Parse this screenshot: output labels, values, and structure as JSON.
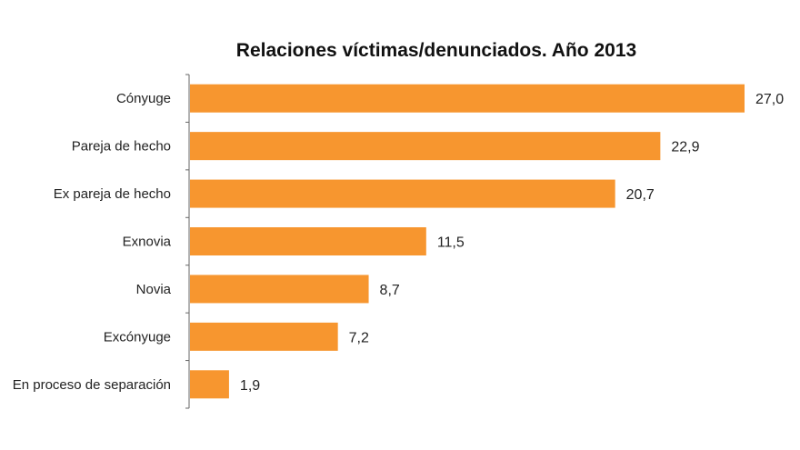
{
  "chart_data": {
    "type": "bar",
    "orientation": "horizontal",
    "title": "Relaciones víctimas/denunciados. Año 2013",
    "categories": [
      "Cónyuge",
      "Pareja de hecho",
      "Ex pareja de hecho",
      "Exnovia",
      "Novia",
      "Excónyuge",
      "En proceso de separación"
    ],
    "values": [
      27.0,
      22.9,
      20.7,
      11.5,
      8.7,
      7.2,
      1.9
    ],
    "value_labels": [
      "27,0",
      "22,9",
      "20,7",
      "11,5",
      "8,7",
      "7,2",
      "1,9"
    ],
    "xlabel": "",
    "ylabel": "",
    "xlim": [
      0,
      27
    ],
    "grid": false,
    "bar_color": "#f7962f"
  }
}
